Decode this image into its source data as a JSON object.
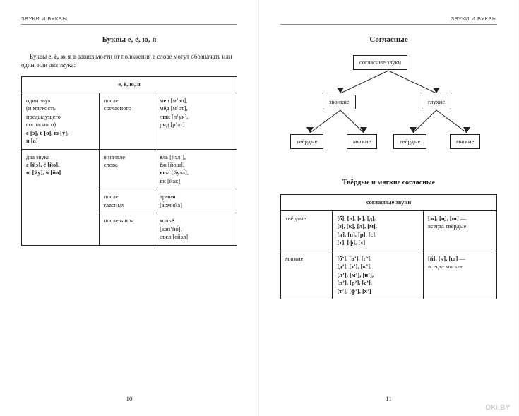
{
  "running_head": "ЗВУКИ И БУКВЫ",
  "watermark": "OKi.BY",
  "left": {
    "page_num": "10",
    "title": "Буквы е, ё, ю, я",
    "intro_pre": "Буквы ",
    "intro_bold": "е, ё, ю, я",
    "intro_post": " в зависимости от положения в слове могут обозначать или один, или два звука:",
    "table": {
      "header": "е, ё, ю, я",
      "rows": [
        {
          "c1": "один звук\n(и мягкость\nпредыдущего\nсогласного)\nе [э], ё [о], ю [у],\nя [а]",
          "c2": "после\nсогласного",
          "c3": "мел [м’эл],\nмёд [м’от],\nлюк [л’ук],\nряд [р’ат]"
        },
        {
          "c1": "два звука\nе [йэ], ё [йо],\nю [йу], я [йа]",
          "c2": "в начале\nслова",
          "c3": "ель [йэл’],\nёж [йош],\nюла [йула́],\nяк [йак]"
        },
        {
          "c1": "",
          "c2": "после\nгласных",
          "c3": "армия\n[а́рмийа]"
        },
        {
          "c1": "",
          "c2": "после ь и ъ",
          "c3": "копьё\n[кап’йо́],\nсъел [сйэл]"
        }
      ]
    }
  },
  "right": {
    "page_num": "11",
    "title": "Согласные",
    "tree": {
      "root": "согласные звуки",
      "l1a": "звонкие",
      "l1b": "глухие",
      "l2a": "твёрдые",
      "l2b": "мягкие",
      "l2c": "твёрдые",
      "l2d": "мягкие"
    },
    "sub_title": "Твёрдые и мягкие согласные",
    "table2": {
      "header": "согласные звуки",
      "rows": [
        {
          "c1": "твёрдые",
          "c2": "[б], [в], [г], [д],\n[з], [к], [л], [м],\n[н], [п], [р], [с],\n[т], [ф], [х]",
          "c3": "[ж], [ц], [ш] —\nвсегда твёрдые"
        },
        {
          "c1": "мягкие",
          "c2": "[б’], [в’], [г’],\n[д’], [з’], [к’],\n[л’], [м’], [н’],\n[п’], [р’], [с’],\n[т’], [ф’], [х’]",
          "c3": "[й], [ч], [щ] —\nвсегда мягкие"
        }
      ]
    }
  }
}
